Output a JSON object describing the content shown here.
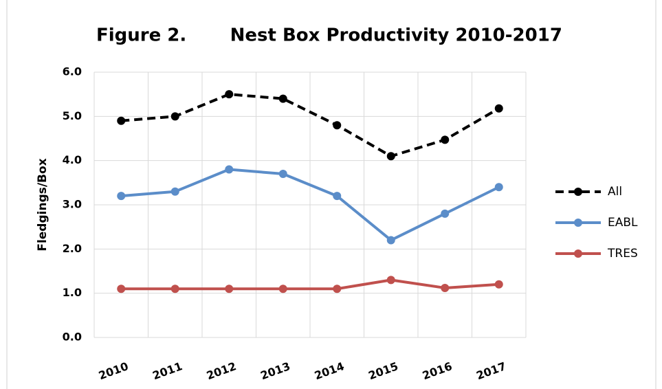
{
  "chart_data": {
    "type": "line",
    "title": "Figure 2.       Nest Box Productivity 2010-2017",
    "y_label": "Fledgings/Box",
    "categories": [
      "2010",
      "2011",
      "2012",
      "2013",
      "2014",
      "2015",
      "2016",
      "2017"
    ],
    "series": [
      {
        "name": "All",
        "color": "#000000",
        "dashed": true,
        "values": [
          4.9,
          5.0,
          5.5,
          5.4,
          4.8,
          4.1,
          4.47,
          5.18
        ]
      },
      {
        "name": "EABL",
        "color": "#5b8dc9",
        "values": [
          3.2,
          3.3,
          3.8,
          3.7,
          3.2,
          2.2,
          2.8,
          3.4
        ]
      },
      {
        "name": "TRES",
        "color": "#c0504d",
        "values": [
          1.1,
          1.1,
          1.1,
          1.1,
          1.1,
          1.3,
          1.12,
          1.2
        ]
      }
    ],
    "ylim": [
      0,
      6
    ],
    "yticks": [
      {
        "value": 0,
        "label": "0.0"
      },
      {
        "value": 1,
        "label": "1.0"
      },
      {
        "value": 2,
        "label": "2.0"
      },
      {
        "value": 3,
        "label": "3.0"
      },
      {
        "value": 4,
        "label": "4.0"
      },
      {
        "value": 5,
        "label": "5.0"
      },
      {
        "value": 6,
        "label": "6.0"
      }
    ],
    "grid": true,
    "legend": "right"
  }
}
